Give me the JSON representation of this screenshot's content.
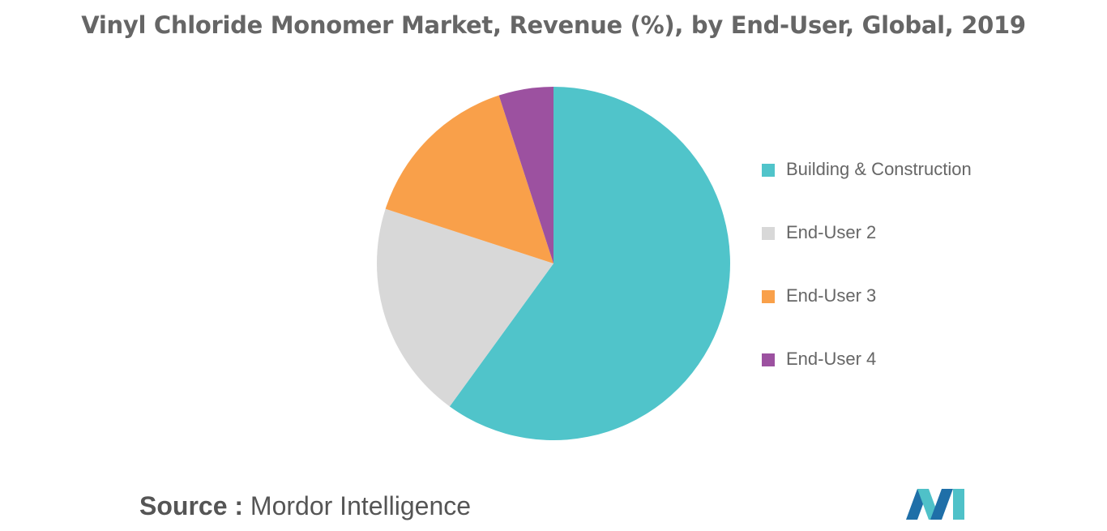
{
  "chart_data": {
    "type": "pie",
    "title": "Vinyl Chloride Monomer Market, Revenue (%), by End-User, Global, 2019",
    "categories": [
      "Building & Construction",
      "End-User 2",
      "End-User 3",
      "End-User 4"
    ],
    "values": [
      60,
      20,
      15,
      5
    ],
    "colors": [
      "#50C4CA",
      "#D8D8D8",
      "#F9A04A",
      "#9C51A0"
    ],
    "start_angle_deg": 0,
    "direction": "clockwise",
    "legend_position": "right"
  },
  "source": {
    "label": "Source :",
    "text": "Mordor Intelligence"
  },
  "logo": {
    "icon": "mordor-intelligence-logo-icon",
    "colors": [
      "#1F6FA8",
      "#4FC1C8"
    ]
  }
}
